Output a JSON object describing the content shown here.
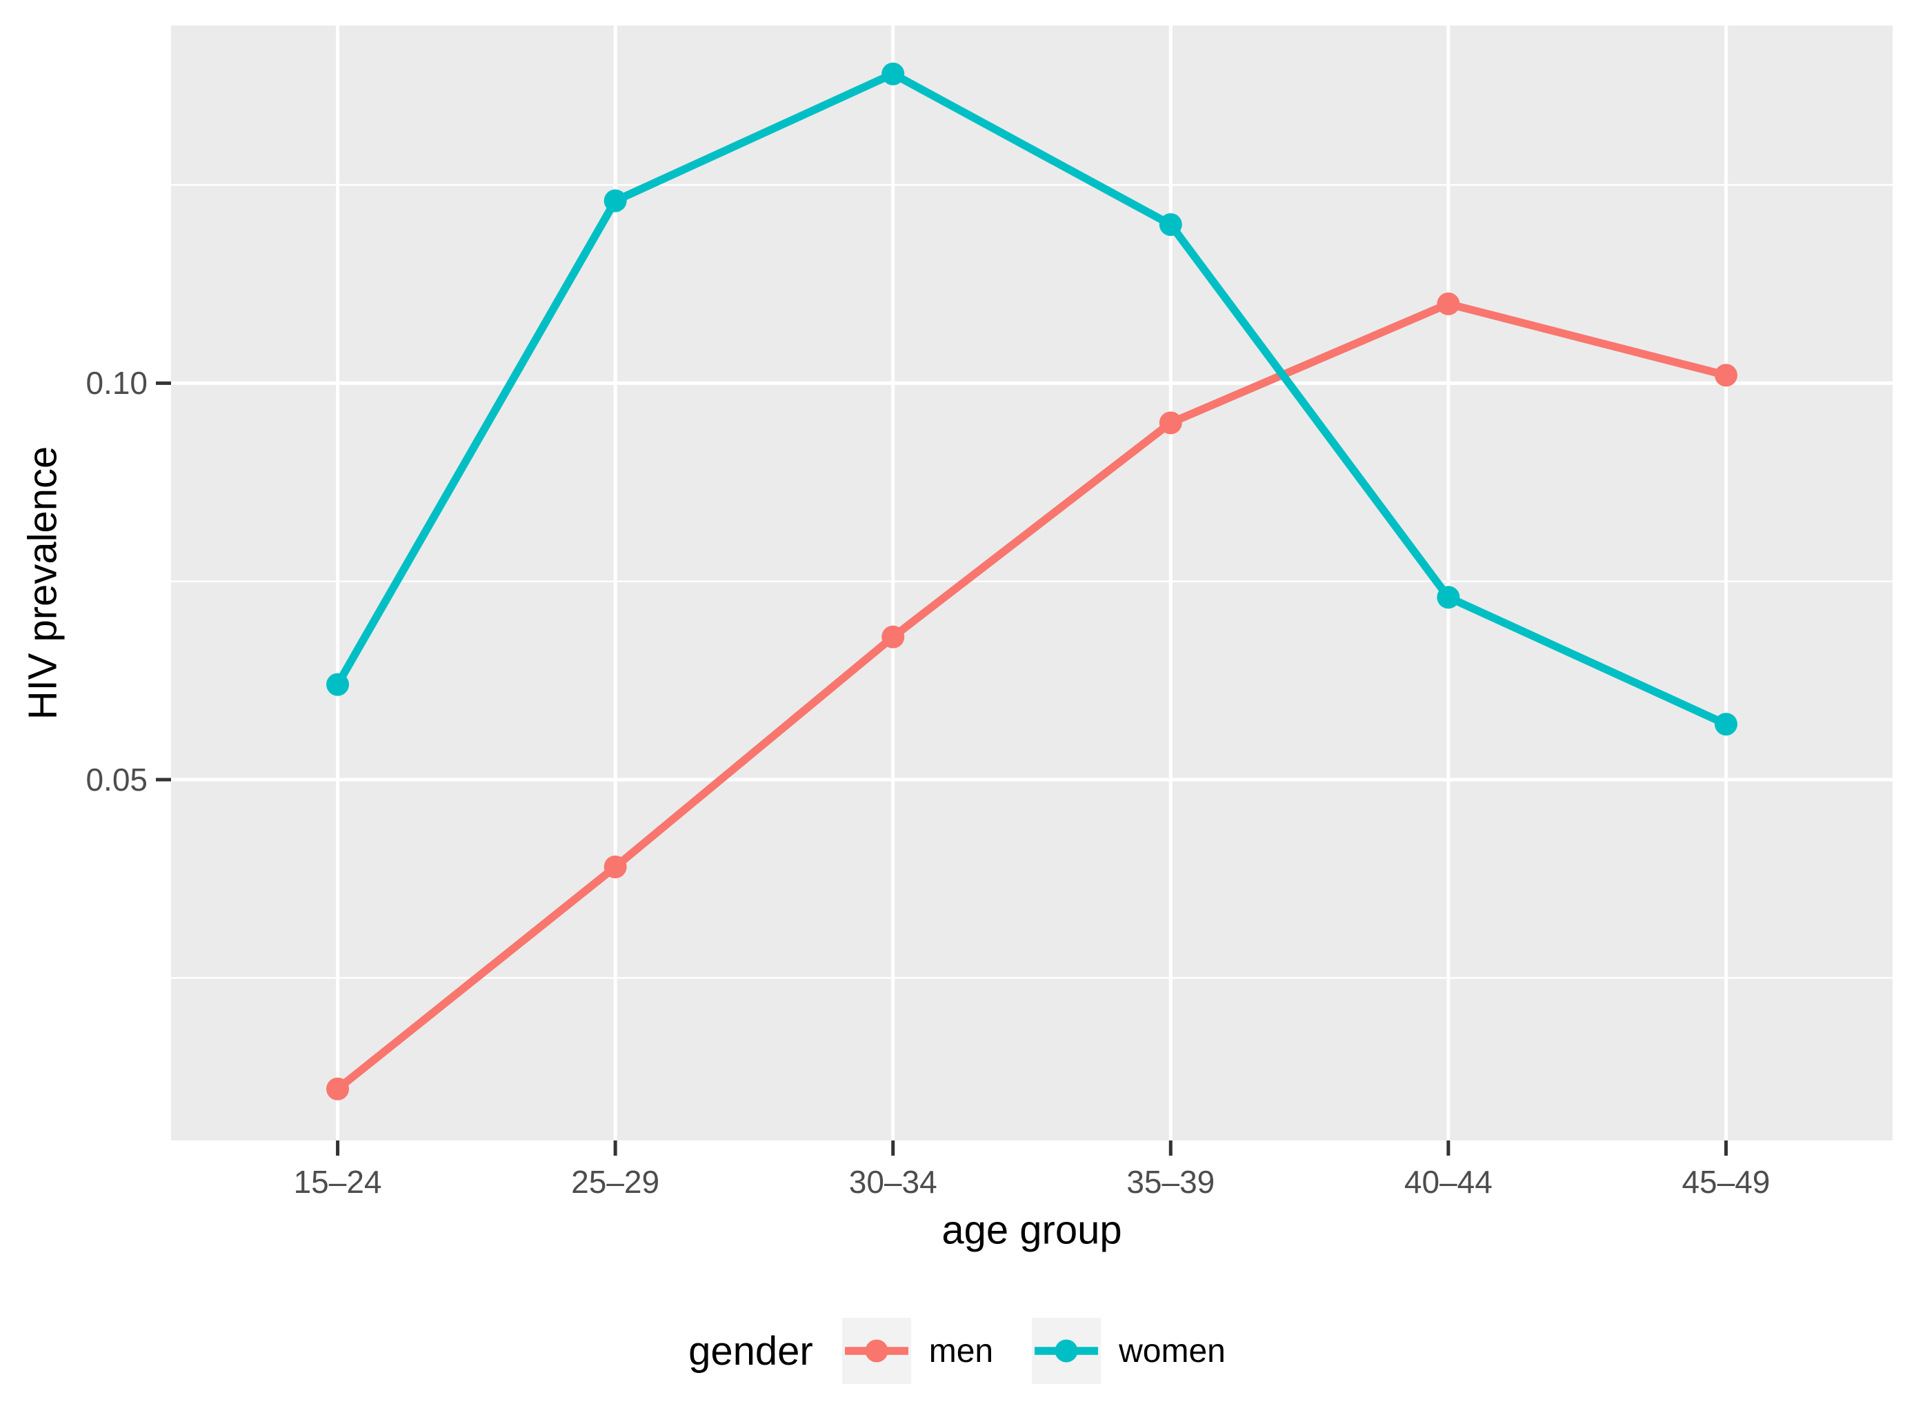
{
  "chart_data": {
    "type": "line",
    "title": "",
    "xlabel": "age group",
    "ylabel": "HIV prevalence",
    "categories": [
      "15–24",
      "25–29",
      "30–34",
      "35–39",
      "40–44",
      "45–49"
    ],
    "series": [
      {
        "name": "men",
        "color": "#F8766D",
        "values": [
          0.011,
          0.039,
          0.068,
          0.095,
          0.11,
          0.101
        ]
      },
      {
        "name": "women",
        "color": "#00BFC4",
        "values": [
          0.062,
          0.123,
          0.139,
          0.12,
          0.073,
          0.057
        ]
      }
    ],
    "ylim": [
      0.0045,
      0.1451
    ],
    "yticks": {
      "major": [
        0.05,
        0.1
      ],
      "minor": [
        0.025,
        0.075,
        0.125
      ],
      "labels": [
        "0.05",
        "0.10"
      ]
    },
    "grid": "major-and-minor-horizontal, major-vertical-per-category",
    "legend": {
      "title": "gender",
      "position": "bottom"
    },
    "style": {
      "panel_bg": "#EBEBEB",
      "grid_color": "#FFFFFF",
      "tick_mark_color": "#333333",
      "tick_label_color": "#4D4D4D",
      "title_color": "#000000",
      "legend_key_bg": "#F2F2F2",
      "line_width": 11.5,
      "point_radius": 16.5
    }
  }
}
